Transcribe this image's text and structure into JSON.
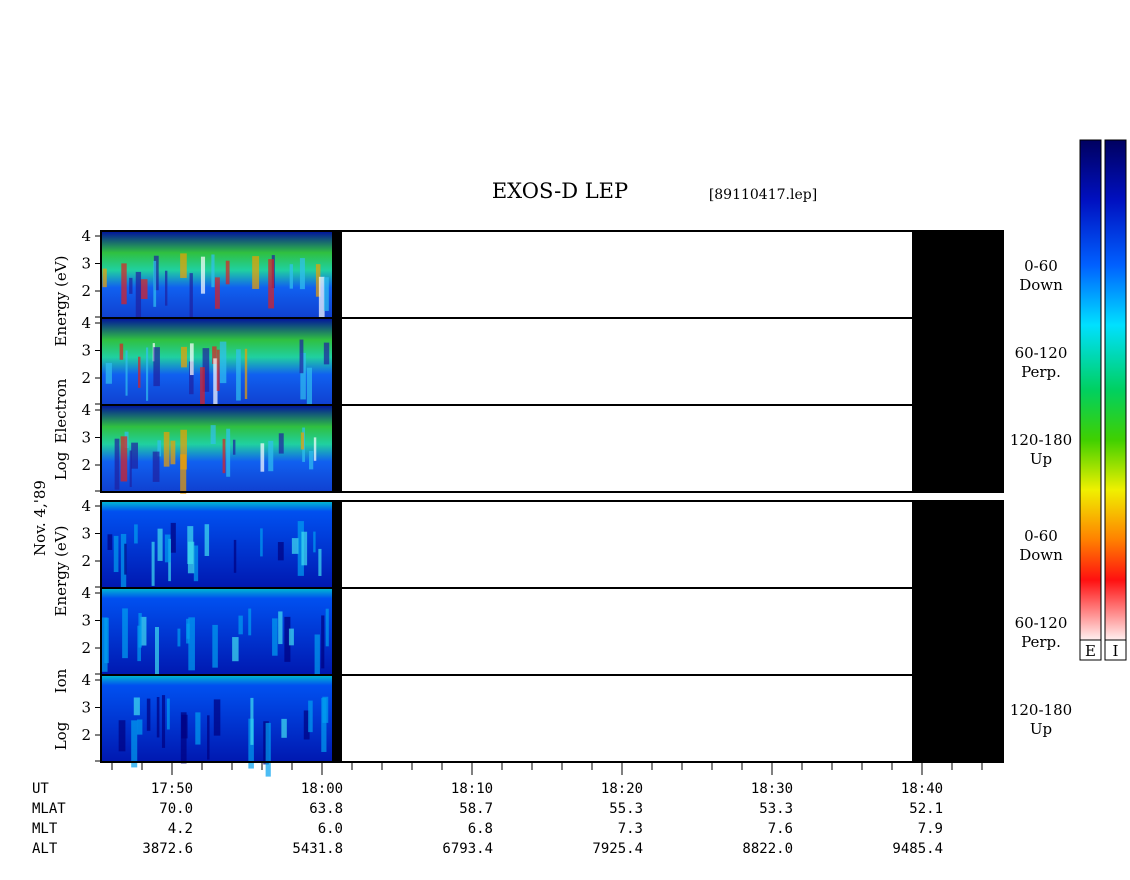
{
  "header": {
    "title": "EXOS-D LEP",
    "file": "[89110417.lep]"
  },
  "left_labels": {
    "date": "Nov. 4,'89",
    "electron": [
      "Log",
      "Electron",
      "Energy (eV)"
    ],
    "ion": [
      "Log",
      "Ion",
      "Energy (eV)"
    ]
  },
  "energy_ticks": [
    "4",
    "3",
    "2"
  ],
  "pitch_bins": [
    {
      "range": "0-60",
      "dir": "Down"
    },
    {
      "range": "60-120",
      "dir": "Perp."
    },
    {
      "range": "120-180",
      "dir": "Up"
    }
  ],
  "colorbar_labels": [
    "E",
    "I"
  ],
  "time_axis": {
    "rows": [
      {
        "label": "UT",
        "values": [
          "17:50",
          "18:00",
          "18:10",
          "18:20",
          "18:30",
          "18:40"
        ]
      },
      {
        "label": "MLAT",
        "values": [
          "70.0",
          "63.8",
          "58.7",
          "55.3",
          "53.3",
          "52.1"
        ]
      },
      {
        "label": "MLT",
        "values": [
          "4.2",
          "6.0",
          "6.8",
          "7.3",
          "7.6",
          "7.9"
        ]
      },
      {
        "label": "ALT",
        "values": [
          "3872.6",
          "5431.8",
          "6793.4",
          "7925.4",
          "8822.0",
          "9485.4"
        ]
      }
    ]
  }
}
